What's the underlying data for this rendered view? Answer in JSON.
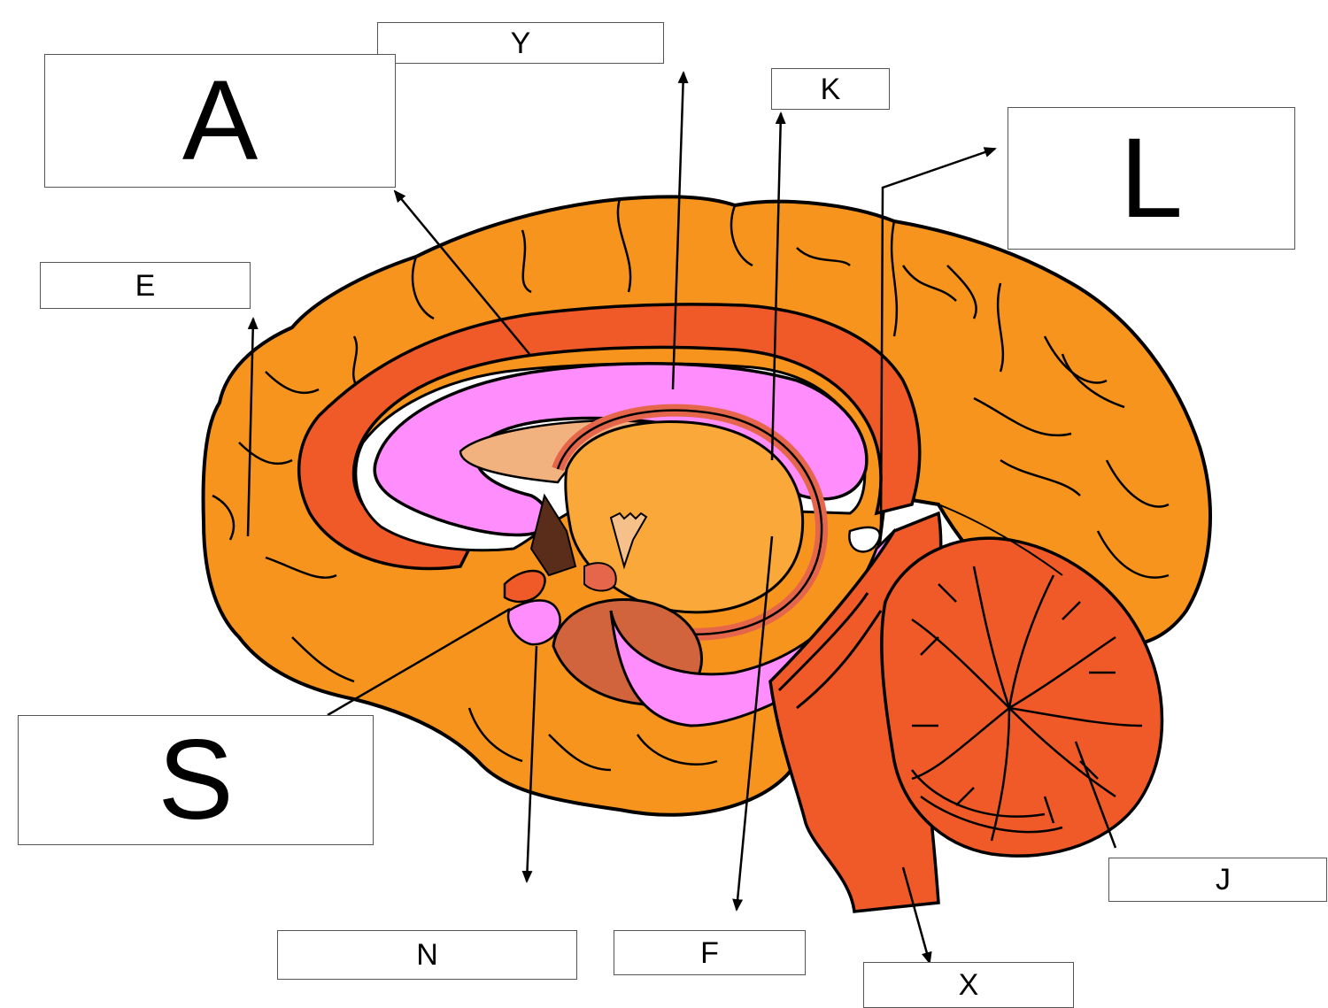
{
  "diagram": {
    "subject": "Midsagittal section of the human brain",
    "labels": {
      "y": "Y",
      "a": "A",
      "k": "K",
      "l": "L",
      "e": "E",
      "s": "S",
      "j": "J",
      "n": "N",
      "f": "F",
      "x": "X"
    },
    "colors": {
      "cortex": "#f7941d",
      "cingulate": "#f05a28",
      "corpus_callosum": "#ff8dfb",
      "thalamus": "#f9a839",
      "cerebellum": "#f05a28",
      "brainstem": "#f05a28",
      "outline": "#000000"
    }
  }
}
